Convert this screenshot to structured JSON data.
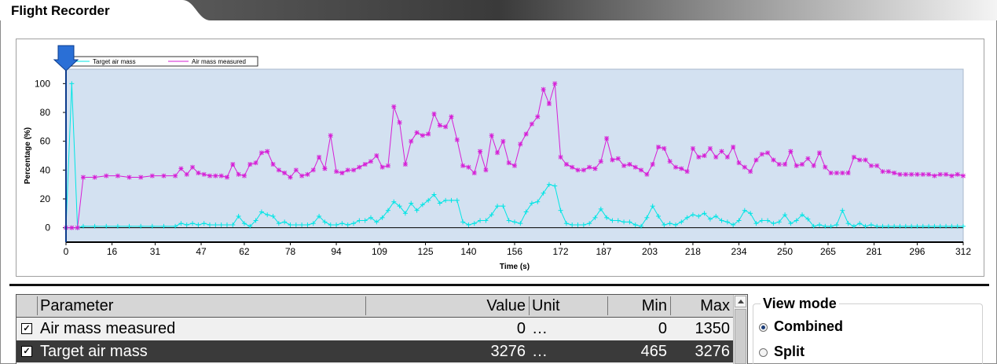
{
  "window": {
    "title": "Flight Recorder"
  },
  "chart_data": {
    "type": "line",
    "title": "",
    "xlabel": "Time (s)",
    "ylabel": "Percentage (%)",
    "xlim": [
      0,
      312
    ],
    "ylim": [
      -10,
      110
    ],
    "x_ticks": [
      0,
      16,
      31,
      47,
      62,
      78,
      94,
      109,
      125,
      140,
      156,
      172,
      187,
      203,
      218,
      234,
      250,
      265,
      281,
      296,
      312
    ],
    "y_ticks": [
      0,
      20,
      40,
      60,
      80,
      100
    ],
    "grid": false,
    "legend_position": "top-left",
    "cursor_time": 0,
    "series": [
      {
        "name": "Target air mass",
        "color": "#00e5e5",
        "marker": "+",
        "x": [
          0,
          2,
          4,
          6,
          10,
          14,
          18,
          22,
          26,
          30,
          34,
          38,
          40,
          42,
          44,
          46,
          48,
          50,
          52,
          54,
          56,
          58,
          60,
          62,
          64,
          66,
          68,
          70,
          72,
          74,
          76,
          78,
          80,
          82,
          84,
          86,
          88,
          90,
          92,
          94,
          96,
          98,
          100,
          102,
          104,
          106,
          108,
          110,
          112,
          114,
          116,
          118,
          120,
          122,
          124,
          126,
          128,
          130,
          132,
          134,
          136,
          138,
          140,
          142,
          144,
          146,
          148,
          150,
          152,
          154,
          156,
          158,
          160,
          162,
          164,
          166,
          168,
          170,
          172,
          174,
          176,
          178,
          180,
          182,
          184,
          186,
          188,
          190,
          192,
          194,
          196,
          198,
          200,
          202,
          204,
          206,
          208,
          210,
          212,
          214,
          216,
          218,
          220,
          222,
          224,
          226,
          228,
          230,
          232,
          234,
          236,
          238,
          240,
          242,
          244,
          246,
          248,
          250,
          252,
          254,
          256,
          258,
          260,
          262,
          264,
          266,
          268,
          270,
          272,
          274,
          276,
          278,
          280,
          282,
          284,
          286,
          288,
          290,
          292,
          294,
          296,
          298,
          300,
          302,
          304,
          306,
          308,
          310,
          312
        ],
        "values": [
          0,
          100,
          0,
          1,
          1,
          1,
          1,
          1,
          1,
          1,
          1,
          1,
          3,
          2,
          3,
          2,
          3,
          2,
          2,
          2,
          2,
          2,
          8,
          3,
          1,
          5,
          11,
          9,
          8,
          3,
          4,
          2,
          2,
          2,
          2,
          3,
          8,
          4,
          2,
          2,
          3,
          2,
          3,
          5,
          5,
          7,
          4,
          7,
          12,
          18,
          15,
          10,
          17,
          12,
          16,
          19,
          23,
          17,
          19,
          19,
          19,
          4,
          2,
          3,
          5,
          5,
          9,
          15,
          15,
          5,
          4,
          3,
          11,
          17,
          18,
          24,
          30,
          29,
          12,
          3,
          2,
          2,
          2,
          3,
          7,
          13,
          7,
          5,
          5,
          4,
          4,
          2,
          1,
          7,
          15,
          8,
          2,
          3,
          2,
          4,
          7,
          9,
          8,
          10,
          6,
          8,
          5,
          4,
          2,
          5,
          12,
          10,
          3,
          5,
          5,
          3,
          4,
          9,
          3,
          5,
          9,
          6,
          1,
          2,
          1,
          1,
          2,
          12,
          3,
          1,
          3,
          1,
          2,
          1,
          1,
          1,
          1,
          1,
          1,
          1,
          1,
          1,
          1,
          1,
          1,
          1,
          1,
          1,
          1
        ]
      },
      {
        "name": "Air mass measured",
        "color": "#d61fd6",
        "marker": "*",
        "x": [
          0,
          2,
          4,
          6,
          10,
          14,
          18,
          22,
          26,
          30,
          34,
          38,
          40,
          42,
          44,
          46,
          48,
          50,
          52,
          54,
          56,
          58,
          60,
          62,
          64,
          66,
          68,
          70,
          72,
          74,
          76,
          78,
          80,
          82,
          84,
          86,
          88,
          90,
          92,
          94,
          96,
          98,
          100,
          102,
          104,
          106,
          108,
          110,
          112,
          114,
          116,
          118,
          120,
          122,
          124,
          126,
          128,
          130,
          132,
          134,
          136,
          138,
          140,
          142,
          144,
          146,
          148,
          150,
          152,
          154,
          156,
          158,
          160,
          162,
          164,
          166,
          168,
          170,
          172,
          174,
          176,
          178,
          180,
          182,
          184,
          186,
          188,
          190,
          192,
          194,
          196,
          198,
          200,
          202,
          204,
          206,
          208,
          210,
          212,
          214,
          216,
          218,
          220,
          222,
          224,
          226,
          228,
          230,
          232,
          234,
          236,
          238,
          240,
          242,
          244,
          246,
          248,
          250,
          252,
          254,
          256,
          258,
          260,
          262,
          264,
          266,
          268,
          270,
          272,
          274,
          276,
          278,
          280,
          282,
          284,
          286,
          288,
          290,
          292,
          294,
          296,
          298,
          300,
          302,
          304,
          306,
          308,
          310,
          312
        ],
        "values": [
          0,
          0,
          0,
          35,
          35,
          36,
          36,
          35,
          35,
          36,
          36,
          36,
          41,
          37,
          42,
          38,
          37,
          36,
          36,
          36,
          35,
          44,
          37,
          36,
          44,
          45,
          52,
          53,
          44,
          40,
          38,
          35,
          40,
          36,
          37,
          40,
          49,
          41,
          64,
          39,
          38,
          40,
          40,
          42,
          44,
          46,
          50,
          42,
          43,
          84,
          73,
          44,
          60,
          66,
          64,
          65,
          79,
          71,
          70,
          77,
          61,
          43,
          42,
          38,
          53,
          40,
          64,
          52,
          60,
          45,
          43,
          58,
          65,
          72,
          77,
          96,
          86,
          100,
          49,
          44,
          42,
          40,
          40,
          42,
          41,
          46,
          62,
          47,
          48,
          43,
          44,
          42,
          40,
          37,
          44,
          56,
          55,
          46,
          42,
          41,
          39,
          55,
          49,
          50,
          55,
          49,
          53,
          49,
          56,
          45,
          42,
          39,
          47,
          51,
          52,
          47,
          44,
          44,
          53,
          43,
          44,
          48,
          43,
          52,
          42,
          38,
          38,
          38,
          38,
          49,
          47,
          47,
          43,
          43,
          39,
          39,
          38,
          37,
          37,
          37,
          37,
          37,
          37,
          36,
          37,
          37,
          36,
          37,
          36
        ]
      }
    ]
  },
  "table": {
    "columns": {
      "parameter": "Parameter",
      "value": "Value",
      "unit": "Unit",
      "min": "Min",
      "max": "Max"
    },
    "rows": [
      {
        "checked": true,
        "parameter": "Air mass measured",
        "value": "0",
        "unit": "…",
        "min": "0",
        "max": "1350"
      },
      {
        "checked": true,
        "parameter": "Target air mass",
        "value": "3276",
        "unit": "…",
        "min": "465",
        "max": "3276"
      }
    ]
  },
  "view_mode": {
    "title": "View mode",
    "options": [
      {
        "label": "Combined",
        "selected": true
      },
      {
        "label": "Split",
        "selected": false
      }
    ]
  }
}
